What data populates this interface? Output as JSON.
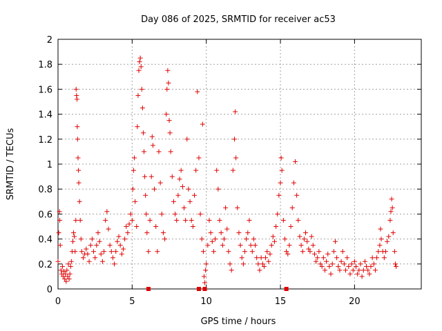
{
  "chart_data": {
    "type": "scatter",
    "title": "Day 086 of 2025, SRMTID for receiver ac53",
    "xlabel": "GPS time / hours",
    "ylabel": "SRMTID / TECUs",
    "xlim": [
      0,
      24.5
    ],
    "ylim": [
      0,
      2
    ],
    "xticks": [
      0,
      5,
      10,
      15,
      20
    ],
    "xtick_labels": [
      "0",
      "5",
      "10",
      "15",
      "20"
    ],
    "yticks": [
      0,
      0.2,
      0.4,
      0.6,
      0.8,
      1,
      1.2,
      1.4,
      1.6,
      1.8,
      2
    ],
    "ytick_labels": [
      "0",
      "0.2",
      "0.4",
      "0.6",
      "0.8",
      "1",
      "1.2",
      "1.4",
      "1.6",
      "1.8",
      "2"
    ],
    "grid": true,
    "marker_color": "#e00000",
    "series": [
      {
        "name": "SRMTID",
        "marker": "plus",
        "points": [
          [
            0.0,
            0.22
          ],
          [
            0.05,
            0.45
          ],
          [
            0.1,
            0.62
          ],
          [
            0.12,
            0.55
          ],
          [
            0.15,
            0.35
          ],
          [
            0.2,
            0.15
          ],
          [
            0.25,
            0.12
          ],
          [
            0.3,
            0.18
          ],
          [
            0.35,
            0.1
          ],
          [
            0.4,
            0.14
          ],
          [
            0.45,
            0.08
          ],
          [
            0.5,
            0.12
          ],
          [
            0.55,
            0.06
          ],
          [
            0.6,
            0.15
          ],
          [
            0.65,
            0.1
          ],
          [
            0.7,
            0.2
          ],
          [
            0.75,
            0.08
          ],
          [
            0.8,
            0.12
          ],
          [
            0.85,
            0.18
          ],
          [
            0.9,
            0.22
          ],
          [
            0.95,
            0.3
          ],
          [
            1.0,
            0.38
          ],
          [
            1.05,
            0.45
          ],
          [
            1.1,
            0.42
          ],
          [
            1.15,
            0.3
          ],
          [
            1.2,
            0.55
          ],
          [
            1.22,
            1.6
          ],
          [
            1.25,
            1.55
          ],
          [
            1.28,
            1.52
          ],
          [
            1.3,
            1.3
          ],
          [
            1.32,
            1.2
          ],
          [
            1.35,
            1.05
          ],
          [
            1.38,
            0.95
          ],
          [
            1.4,
            0.85
          ],
          [
            1.45,
            0.7
          ],
          [
            1.5,
            0.55
          ],
          [
            1.55,
            0.4
          ],
          [
            1.6,
            0.3
          ],
          [
            1.7,
            0.25
          ],
          [
            1.8,
            0.28
          ],
          [
            1.9,
            0.32
          ],
          [
            2.0,
            0.28
          ],
          [
            2.1,
            0.22
          ],
          [
            2.2,
            0.35
          ],
          [
            2.3,
            0.4
          ],
          [
            2.4,
            0.3
          ],
          [
            2.5,
            0.25
          ],
          [
            2.6,
            0.35
          ],
          [
            2.7,
            0.45
          ],
          [
            2.8,
            0.38
          ],
          [
            2.9,
            0.28
          ],
          [
            3.0,
            0.22
          ],
          [
            3.1,
            0.3
          ],
          [
            3.2,
            0.55
          ],
          [
            3.3,
            0.62
          ],
          [
            3.4,
            0.48
          ],
          [
            3.5,
            0.35
          ],
          [
            3.6,
            0.3
          ],
          [
            3.7,
            0.25
          ],
          [
            3.8,
            0.2
          ],
          [
            3.9,
            0.3
          ],
          [
            4.0,
            0.38
          ],
          [
            4.1,
            0.42
          ],
          [
            4.2,
            0.35
          ],
          [
            4.3,
            0.28
          ],
          [
            4.4,
            0.32
          ],
          [
            4.5,
            0.4
          ],
          [
            4.6,
            0.5
          ],
          [
            4.7,
            0.45
          ],
          [
            4.8,
            0.52
          ],
          [
            4.9,
            0.6
          ],
          [
            5.0,
            0.55
          ],
          [
            5.05,
            0.8
          ],
          [
            5.1,
            0.95
          ],
          [
            5.15,
            1.05
          ],
          [
            5.2,
            0.7
          ],
          [
            5.3,
            0.5
          ],
          [
            5.35,
            1.3
          ],
          [
            5.4,
            1.55
          ],
          [
            5.45,
            1.75
          ],
          [
            5.5,
            1.82
          ],
          [
            5.55,
            1.85
          ],
          [
            5.6,
            1.78
          ],
          [
            5.65,
            1.6
          ],
          [
            5.7,
            1.45
          ],
          [
            5.75,
            1.25
          ],
          [
            5.8,
            1.1
          ],
          [
            5.85,
            0.9
          ],
          [
            5.9,
            0.75
          ],
          [
            5.95,
            0.6
          ],
          [
            6.0,
            0.45
          ],
          [
            6.1,
            0.3
          ],
          [
            6.2,
            0.55
          ],
          [
            6.3,
            0.9
          ],
          [
            6.35,
            1.22
          ],
          [
            6.4,
            1.15
          ],
          [
            6.5,
            0.8
          ],
          [
            6.6,
            0.5
          ],
          [
            6.7,
            0.3
          ],
          [
            6.8,
            1.1
          ],
          [
            6.9,
            0.85
          ],
          [
            7.0,
            0.6
          ],
          [
            7.1,
            0.45
          ],
          [
            7.2,
            0.4
          ],
          [
            7.3,
            1.4
          ],
          [
            7.35,
            1.6
          ],
          [
            7.4,
            1.75
          ],
          [
            7.45,
            1.65
          ],
          [
            7.5,
            1.35
          ],
          [
            7.55,
            1.25
          ],
          [
            7.6,
            1.1
          ],
          [
            7.7,
            0.9
          ],
          [
            7.8,
            0.7
          ],
          [
            7.9,
            0.6
          ],
          [
            8.0,
            0.55
          ],
          [
            8.1,
            0.75
          ],
          [
            8.2,
            0.88
          ],
          [
            8.3,
            0.95
          ],
          [
            8.4,
            0.82
          ],
          [
            8.5,
            0.65
          ],
          [
            8.6,
            0.55
          ],
          [
            8.7,
            1.2
          ],
          [
            8.8,
            0.8
          ],
          [
            8.9,
            0.7
          ],
          [
            9.0,
            0.55
          ],
          [
            9.1,
            0.5
          ],
          [
            9.2,
            0.75
          ],
          [
            9.3,
            0.95
          ],
          [
            9.4,
            1.58
          ],
          [
            9.5,
            1.05
          ],
          [
            9.6,
            0.6
          ],
          [
            9.7,
            0.4
          ],
          [
            9.75,
            1.32
          ],
          [
            9.8,
            0.3
          ],
          [
            9.85,
            0.1
          ],
          [
            9.9,
            0.05
          ],
          [
            9.95,
            0.15
          ],
          [
            10.0,
            0.2
          ],
          [
            10.1,
            0.35
          ],
          [
            10.2,
            0.55
          ],
          [
            10.3,
            0.45
          ],
          [
            10.4,
            0.38
          ],
          [
            10.5,
            0.3
          ],
          [
            10.6,
            0.4
          ],
          [
            10.7,
            0.95
          ],
          [
            10.8,
            0.8
          ],
          [
            10.9,
            0.55
          ],
          [
            11.0,
            0.45
          ],
          [
            11.1,
            0.35
          ],
          [
            11.2,
            0.4
          ],
          [
            11.3,
            0.65
          ],
          [
            11.4,
            0.48
          ],
          [
            11.5,
            0.3
          ],
          [
            11.6,
            0.2
          ],
          [
            11.7,
            0.15
          ],
          [
            11.8,
            0.95
          ],
          [
            11.9,
            1.2
          ],
          [
            11.95,
            1.42
          ],
          [
            12.0,
            1.05
          ],
          [
            12.1,
            0.65
          ],
          [
            12.2,
            0.45
          ],
          [
            12.3,
            0.35
          ],
          [
            12.4,
            0.25
          ],
          [
            12.5,
            0.2
          ],
          [
            12.6,
            0.3
          ],
          [
            12.7,
            0.4
          ],
          [
            12.8,
            0.45
          ],
          [
            12.9,
            0.55
          ],
          [
            13.0,
            0.35
          ],
          [
            13.1,
            0.3
          ],
          [
            13.2,
            0.4
          ],
          [
            13.3,
            0.35
          ],
          [
            13.4,
            0.25
          ],
          [
            13.5,
            0.2
          ],
          [
            13.6,
            0.15
          ],
          [
            13.7,
            0.25
          ],
          [
            13.8,
            0.2
          ],
          [
            13.9,
            0.18
          ],
          [
            14.0,
            0.25
          ],
          [
            14.1,
            0.3
          ],
          [
            14.2,
            0.22
          ],
          [
            14.3,
            0.28
          ],
          [
            14.4,
            0.35
          ],
          [
            14.5,
            0.42
          ],
          [
            14.6,
            0.38
          ],
          [
            14.7,
            0.5
          ],
          [
            14.8,
            0.6
          ],
          [
            14.9,
            0.75
          ],
          [
            15.0,
            0.85
          ],
          [
            15.05,
            1.05
          ],
          [
            15.1,
            0.95
          ],
          [
            15.2,
            0.55
          ],
          [
            15.3,
            0.4
          ],
          [
            15.4,
            0.3
          ],
          [
            15.5,
            0.28
          ],
          [
            15.6,
            0.35
          ],
          [
            15.7,
            0.5
          ],
          [
            15.8,
            0.65
          ],
          [
            15.9,
            0.85
          ],
          [
            16.0,
            1.02
          ],
          [
            16.1,
            0.75
          ],
          [
            16.2,
            0.55
          ],
          [
            16.3,
            0.42
          ],
          [
            16.4,
            0.35
          ],
          [
            16.5,
            0.3
          ],
          [
            16.6,
            0.4
          ],
          [
            16.7,
            0.45
          ],
          [
            16.8,
            0.38
          ],
          [
            16.9,
            0.32
          ],
          [
            17.0,
            0.3
          ],
          [
            17.1,
            0.42
          ],
          [
            17.2,
            0.35
          ],
          [
            17.3,
            0.28
          ],
          [
            17.4,
            0.22
          ],
          [
            17.5,
            0.25
          ],
          [
            17.6,
            0.3
          ],
          [
            17.7,
            0.2
          ],
          [
            17.8,
            0.18
          ],
          [
            17.9,
            0.25
          ],
          [
            18.0,
            0.15
          ],
          [
            18.1,
            0.22
          ],
          [
            18.2,
            0.28
          ],
          [
            18.3,
            0.18
          ],
          [
            18.4,
            0.12
          ],
          [
            18.5,
            0.2
          ],
          [
            18.6,
            0.3
          ],
          [
            18.7,
            0.38
          ],
          [
            18.8,
            0.25
          ],
          [
            18.9,
            0.18
          ],
          [
            19.0,
            0.15
          ],
          [
            19.1,
            0.22
          ],
          [
            19.2,
            0.3
          ],
          [
            19.3,
            0.2
          ],
          [
            19.4,
            0.15
          ],
          [
            19.5,
            0.25
          ],
          [
            19.6,
            0.18
          ],
          [
            19.7,
            0.12
          ],
          [
            19.8,
            0.2
          ],
          [
            19.9,
            0.15
          ],
          [
            20.0,
            0.22
          ],
          [
            20.1,
            0.18
          ],
          [
            20.2,
            0.12
          ],
          [
            20.3,
            0.15
          ],
          [
            20.4,
            0.2
          ],
          [
            20.5,
            0.1
          ],
          [
            20.6,
            0.15
          ],
          [
            20.7,
            0.22
          ],
          [
            20.8,
            0.18
          ],
          [
            20.9,
            0.15
          ],
          [
            21.0,
            0.12
          ],
          [
            21.1,
            0.18
          ],
          [
            21.2,
            0.25
          ],
          [
            21.3,
            0.2
          ],
          [
            21.4,
            0.15
          ],
          [
            21.5,
            0.25
          ],
          [
            21.6,
            0.3
          ],
          [
            21.7,
            0.35
          ],
          [
            21.75,
            0.48
          ],
          [
            21.8,
            0.4
          ],
          [
            21.9,
            0.3
          ],
          [
            22.0,
            0.25
          ],
          [
            22.1,
            0.3
          ],
          [
            22.2,
            0.38
          ],
          [
            22.3,
            0.42
          ],
          [
            22.4,
            0.55
          ],
          [
            22.45,
            0.62
          ],
          [
            22.5,
            0.72
          ],
          [
            22.55,
            0.65
          ],
          [
            22.6,
            0.45
          ],
          [
            22.7,
            0.3
          ],
          [
            22.75,
            0.2
          ],
          [
            22.8,
            0.18
          ]
        ]
      }
    ],
    "zero_markers": [
      6.1,
      9.5,
      9.9,
      15.4
    ]
  }
}
